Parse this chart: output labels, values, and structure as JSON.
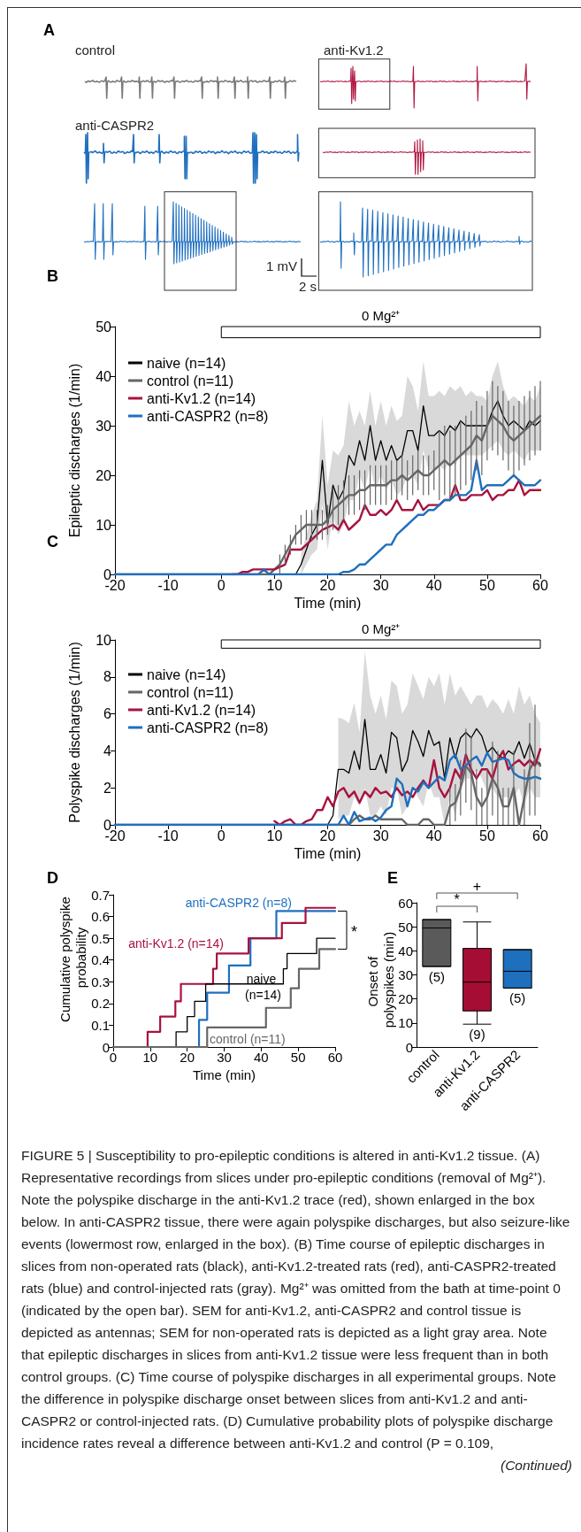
{
  "chart_data": [
    {
      "type": "other",
      "title": "A",
      "annotations": [
        "control",
        "anti-Kv1.2",
        "anti-CASPR2",
        "1 mV",
        "2 s"
      ]
    },
    {
      "type": "line",
      "title": "B",
      "xlabel": "Time (min)",
      "ylabel": "Epileptic discharges (1/min)",
      "xlim": [
        -20,
        60
      ],
      "xticks": [
        -20,
        -10,
        0,
        10,
        20,
        30,
        40,
        50,
        60
      ],
      "ylim": [
        0,
        50
      ],
      "yticks": [
        0,
        10,
        20,
        30,
        40,
        50
      ],
      "legend": "top left",
      "bands": [
        {
          "axis": "x",
          "from": 0,
          "to": 60,
          "label": "0 Mg²⁺"
        }
      ],
      "x": [
        -20,
        -19,
        -18,
        -17,
        -16,
        -15,
        -14,
        -13,
        -12,
        -11,
        -10,
        -9,
        -8,
        -7,
        -6,
        -5,
        -4,
        -3,
        -2,
        -1,
        0,
        1,
        2,
        3,
        4,
        5,
        6,
        7,
        8,
        9,
        10,
        11,
        12,
        13,
        14,
        15,
        16,
        17,
        18,
        19,
        20,
        21,
        22,
        23,
        24,
        25,
        26,
        27,
        28,
        29,
        30,
        31,
        32,
        33,
        34,
        35,
        36,
        37,
        38,
        39,
        40,
        41,
        42,
        43,
        44,
        45,
        46,
        47,
        48,
        49,
        50,
        51,
        52,
        53,
        54,
        55,
        56,
        57,
        58,
        59,
        60
      ],
      "series": [
        {
          "name": "naive (n=14)",
          "color": "#000000",
          "values": [
            0,
            0,
            0,
            0,
            0,
            0,
            0,
            0,
            0,
            0,
            0,
            0,
            0,
            0,
            0,
            0,
            0,
            0,
            0,
            0,
            0,
            0,
            0,
            0,
            0,
            0,
            0,
            0,
            0,
            0,
            0,
            0,
            0,
            0,
            0,
            2,
            5,
            8,
            10,
            23,
            10,
            18,
            15,
            17,
            24,
            22,
            27,
            23,
            30,
            23,
            27,
            23,
            26,
            23,
            24,
            29,
            29,
            25,
            34,
            28,
            28,
            29,
            28,
            30,
            29,
            31,
            30,
            30,
            30,
            30,
            30,
            33,
            35,
            32,
            30,
            31,
            30,
            29,
            31,
            30,
            31
          ],
          "lower": [
            null,
            null,
            null,
            null,
            null,
            null,
            null,
            null,
            null,
            null,
            null,
            null,
            null,
            null,
            null,
            null,
            null,
            null,
            null,
            null,
            null,
            null,
            null,
            null,
            null,
            null,
            null,
            null,
            null,
            null,
            null,
            null,
            null,
            null,
            null,
            0,
            2,
            4,
            5,
            14,
            5,
            12,
            8,
            10,
            15,
            15,
            20,
            17,
            22,
            17,
            20,
            17,
            19,
            16,
            17,
            20,
            20,
            18,
            25,
            21,
            21,
            22,
            21,
            23,
            22,
            24,
            24,
            24,
            24,
            24,
            25,
            26,
            27,
            25,
            24,
            25,
            24,
            23,
            25,
            25,
            25
          ],
          "upper": [
            null,
            null,
            null,
            null,
            null,
            null,
            null,
            null,
            null,
            null,
            null,
            null,
            null,
            null,
            null,
            null,
            null,
            null,
            null,
            null,
            null,
            null,
            null,
            null,
            null,
            null,
            null,
            null,
            null,
            null,
            null,
            null,
            null,
            null,
            null,
            4,
            8,
            12,
            15,
            32,
            18,
            25,
            24,
            26,
            35,
            30,
            33,
            30,
            37,
            30,
            35,
            30,
            34,
            31,
            32,
            40,
            38,
            33,
            43,
            36,
            36,
            37,
            36,
            38,
            37,
            38,
            36,
            37,
            36,
            36,
            35,
            40,
            43,
            38,
            35,
            36,
            35,
            34,
            36,
            35,
            38
          ]
        },
        {
          "name": "control (n=11)",
          "color": "#666666",
          "values": [
            0,
            0,
            0,
            0,
            0,
            0,
            0,
            0,
            0,
            0,
            0,
            0,
            0,
            0,
            0,
            0,
            0,
            0,
            0,
            0,
            0,
            0,
            0,
            0,
            0,
            0,
            0,
            0,
            0,
            0,
            1,
            2,
            4,
            6,
            8,
            9,
            10,
            10,
            10,
            10,
            11,
            13,
            14,
            15,
            16,
            16,
            17,
            17,
            18,
            18,
            18,
            18,
            19,
            19,
            20,
            19,
            20,
            21,
            20,
            20,
            21,
            22,
            23,
            22,
            23,
            24,
            25,
            26,
            28,
            27,
            30,
            32,
            31,
            30,
            28,
            27,
            28,
            29,
            30,
            31,
            32
          ],
          "errors": [
            null,
            null,
            null,
            null,
            null,
            null,
            null,
            null,
            null,
            null,
            null,
            null,
            null,
            null,
            null,
            null,
            null,
            null,
            null,
            null,
            null,
            null,
            null,
            null,
            null,
            null,
            null,
            null,
            null,
            null,
            null,
            2,
            2,
            2,
            2,
            3,
            3,
            3,
            3,
            3,
            3,
            4,
            4,
            4,
            4,
            4,
            4,
            4,
            4,
            4,
            4,
            4,
            4,
            4,
            4,
            4,
            4,
            4,
            4,
            4,
            4,
            7,
            7,
            7,
            7,
            7,
            7,
            7,
            7,
            7,
            7,
            7,
            7,
            7,
            7,
            7,
            7,
            7,
            7,
            7,
            7
          ]
        },
        {
          "name": "anti-Kv1.2 (n=14)",
          "color": "#a8123e",
          "values": [
            null,
            null,
            null,
            null,
            null,
            null,
            null,
            null,
            null,
            null,
            null,
            null,
            null,
            null,
            null,
            null,
            null,
            null,
            null,
            null,
            null,
            null,
            0,
            0,
            0.5,
            0.5,
            1,
            1,
            1,
            1,
            1,
            1.5,
            2,
            5,
            5,
            5,
            6,
            7,
            8,
            9,
            9.5,
            10,
            9,
            11,
            9,
            10,
            11,
            14,
            12,
            12,
            13,
            12,
            13,
            15,
            13,
            13,
            13,
            15,
            13,
            14,
            14,
            14,
            15,
            15,
            18,
            15,
            15,
            16,
            16,
            16,
            17,
            15,
            16,
            16,
            17,
            17,
            19,
            16,
            17,
            17,
            17
          ]
        },
        {
          "name": "anti-CASPR2 (n=8)",
          "color": "#1f6fbf",
          "values": [
            0,
            0,
            0,
            0,
            0,
            0,
            0,
            0,
            0,
            0,
            0,
            0,
            0,
            0,
            0,
            0,
            0,
            0,
            0,
            0,
            0,
            0,
            0,
            0,
            0,
            0,
            0,
            0,
            1,
            0,
            0,
            0,
            0,
            0,
            0,
            0,
            0,
            0,
            0,
            0,
            0,
            0,
            0,
            0.5,
            0.5,
            1,
            2,
            2,
            3,
            4,
            5,
            6,
            6,
            8,
            9,
            10,
            11,
            12,
            12,
            13,
            13,
            14,
            15,
            15,
            16,
            16,
            16,
            17,
            23,
            17,
            18,
            18,
            18,
            18,
            19,
            20,
            19,
            18,
            18,
            18,
            19
          ]
        }
      ]
    },
    {
      "type": "line",
      "title": "C",
      "xlabel": "Time (min)",
      "ylabel": "Polyspike discharges (1/min)",
      "xlim": [
        -20,
        60
      ],
      "xticks": [
        -20,
        -10,
        0,
        10,
        20,
        30,
        40,
        50,
        60
      ],
      "ylim": [
        0,
        10
      ],
      "yticks": [
        0,
        2,
        4,
        6,
        8,
        10
      ],
      "legend": "top left",
      "bands": [
        {
          "axis": "x",
          "from": 0,
          "to": 60,
          "label": "0 Mg²⁺"
        }
      ],
      "x": [
        -20,
        -19,
        -18,
        -17,
        -16,
        -15,
        -14,
        -13,
        -12,
        -11,
        -10,
        -9,
        -8,
        -7,
        -6,
        -5,
        -4,
        -3,
        -2,
        -1,
        0,
        1,
        2,
        3,
        4,
        5,
        6,
        7,
        8,
        9,
        10,
        11,
        12,
        13,
        14,
        15,
        16,
        17,
        18,
        19,
        20,
        21,
        22,
        23,
        24,
        25,
        26,
        27,
        28,
        29,
        30,
        31,
        32,
        33,
        34,
        35,
        36,
        37,
        38,
        39,
        40,
        41,
        42,
        43,
        44,
        45,
        46,
        47,
        48,
        49,
        50,
        51,
        52,
        53,
        54,
        55,
        56,
        57,
        58,
        59,
        60
      ],
      "series": [
        {
          "name": "naive (n=14)",
          "color": "#000000",
          "values": [
            0,
            0,
            0,
            0,
            0,
            0,
            0,
            0,
            0,
            0,
            0,
            0,
            0,
            0,
            0,
            0,
            0,
            0,
            0,
            0,
            0,
            0,
            0,
            0,
            0,
            0,
            0,
            0,
            0,
            0,
            0,
            0,
            0,
            0,
            0,
            0,
            0,
            0,
            0,
            0,
            0,
            0.5,
            3,
            3,
            2.8,
            4,
            3,
            5.7,
            3,
            3,
            3.8,
            2.8,
            5,
            4.7,
            2.9,
            3.5,
            5.1,
            4.5,
            3.7,
            5.1,
            4.3,
            4.5,
            2.5,
            4.7,
            3.6,
            4.7,
            5,
            4.7,
            5.2,
            4.8,
            3.9,
            4.2,
            3.8,
            3.6,
            4,
            3.8,
            4.5,
            3.6,
            4.4,
            3.5,
            3.3
          ],
          "lower": [
            null,
            null,
            null,
            null,
            null,
            null,
            null,
            null,
            null,
            null,
            null,
            null,
            null,
            null,
            null,
            null,
            null,
            null,
            null,
            null,
            null,
            null,
            null,
            null,
            null,
            null,
            null,
            null,
            null,
            null,
            null,
            null,
            null,
            null,
            null,
            null,
            null,
            null,
            null,
            null,
            null,
            null,
            0.3,
            0.5,
            0.5,
            1.5,
            1,
            2,
            0.5,
            0.5,
            1,
            0.5,
            2,
            2,
            0.5,
            1,
            2,
            1.5,
            1,
            2.3,
            1.5,
            1.5,
            0,
            1.5,
            0.5,
            2,
            2.5,
            2.5,
            3,
            2.5,
            1.8,
            2,
            1.5,
            1.5,
            1.5,
            1.5,
            2,
            1,
            2,
            1.5,
            1.5
          ],
          "upper": [
            null,
            null,
            null,
            null,
            null,
            null,
            null,
            null,
            null,
            null,
            null,
            null,
            null,
            null,
            null,
            null,
            null,
            null,
            null,
            null,
            null,
            null,
            null,
            null,
            null,
            null,
            null,
            null,
            null,
            null,
            null,
            null,
            null,
            null,
            null,
            null,
            null,
            null,
            null,
            null,
            null,
            null,
            5.8,
            5.7,
            5.5,
            6.6,
            5,
            9.4,
            7,
            6,
            7,
            5.7,
            7.8,
            7.5,
            6,
            6.5,
            8.2,
            7.5,
            6.8,
            8,
            7.5,
            8.2,
            6.5,
            8.2,
            7,
            7.5,
            7,
            6.5,
            7,
            7,
            6.3,
            6.8,
            6.5,
            6,
            6.8,
            6,
            7.5,
            6.5,
            7,
            6,
            5.5
          ]
        },
        {
          "name": "control (n=11)",
          "color": "#666666",
          "values": [
            0,
            0,
            0,
            0,
            0,
            0,
            0,
            0,
            0,
            0,
            0,
            0,
            0,
            0,
            0,
            0,
            0,
            0,
            0,
            0,
            0,
            0,
            0,
            0,
            0,
            0,
            0,
            0,
            0,
            0,
            0,
            0,
            0,
            0,
            0,
            0,
            0,
            0,
            0,
            0,
            0,
            0,
            0,
            0,
            0,
            0.3,
            0.5,
            0.3,
            0.3,
            0.5,
            0.3,
            0.3,
            0.3,
            0.3,
            0.3,
            0,
            0,
            0,
            0.3,
            0.3,
            0,
            0,
            0,
            1,
            1.2,
            2,
            3.2,
            2.8,
            1.5,
            1,
            1.5,
            2.5,
            2,
            1,
            1,
            2,
            0,
            1.5,
            3,
            3.5,
            3.2
          ],
          "errors": [
            null,
            null,
            null,
            null,
            null,
            null,
            null,
            null,
            null,
            null,
            null,
            null,
            null,
            null,
            null,
            null,
            null,
            null,
            null,
            null,
            null,
            null,
            null,
            null,
            null,
            null,
            null,
            null,
            null,
            null,
            null,
            null,
            null,
            null,
            null,
            null,
            null,
            null,
            null,
            null,
            null,
            null,
            null,
            null,
            null,
            null,
            null,
            null,
            null,
            null,
            null,
            null,
            null,
            null,
            null,
            null,
            null,
            null,
            null,
            null,
            null,
            null,
            null,
            1,
            1,
            1.5,
            2,
            2,
            1.5,
            1,
            1.5,
            2,
            2,
            1,
            1,
            2,
            null,
            1.5,
            2.5,
            3,
            null
          ]
        },
        {
          "name": "anti-Kv1.2 (n=14)",
          "color": "#a8123e",
          "values": [
            null,
            null,
            null,
            null,
            null,
            null,
            null,
            null,
            null,
            null,
            null,
            null,
            null,
            null,
            null,
            null,
            null,
            null,
            null,
            null,
            null,
            null,
            null,
            null,
            null,
            null,
            null,
            null,
            null,
            null,
            0.2,
            0,
            0.2,
            0.3,
            0,
            0,
            0.2,
            0.3,
            0.8,
            0.8,
            1.5,
            1,
            1.8,
            2,
            1.5,
            1.8,
            1.2,
            1.8,
            1.5,
            2,
            1.7,
            1.8,
            1.5,
            2,
            1.6,
            1.8,
            1.5,
            2,
            2.4,
            2,
            3.5,
            2,
            1.5,
            2,
            3,
            2.5,
            3.8,
            3,
            2.5,
            3,
            3,
            2.5,
            3.5,
            4,
            3,
            3.3,
            3.5,
            3.2,
            3.5,
            3.2,
            4.1
          ]
        },
        {
          "name": "anti-CASPR2 (n=8)",
          "color": "#1f6fbf",
          "values": [
            0,
            0,
            0,
            0,
            0,
            0,
            0,
            0,
            0,
            0,
            0,
            0,
            0,
            0,
            0,
            0,
            0,
            0,
            0,
            0,
            0,
            0,
            0,
            0,
            0,
            0,
            0,
            0,
            0,
            0,
            0,
            0,
            0,
            0,
            0,
            0,
            0,
            0,
            0,
            0,
            0,
            0,
            0,
            0.5,
            0,
            0.7,
            0.2,
            0.3,
            0.4,
            0.2,
            0.4,
            0.8,
            1,
            2.5,
            2.2,
            1,
            2,
            1.8,
            2.3,
            2,
            2.3,
            2.6,
            2.4,
            3.5,
            3.8,
            3,
            3.2,
            3.5,
            3.7,
            3.2,
            3.9,
            3.4,
            3.5,
            3.6,
            3.5,
            2.8,
            2.6,
            2.5,
            2.5,
            2.6,
            2.5
          ]
        }
      ]
    },
    {
      "type": "step",
      "title": "D",
      "xlabel": "Time (min)",
      "ylabel": "Cumulative polyspike probability",
      "xlim": [
        0,
        60
      ],
      "xticks": [
        0,
        10,
        20,
        30,
        40,
        50,
        60
      ],
      "ylim": [
        0,
        0.7
      ],
      "yticks": [
        0,
        0.1,
        0.2,
        0.3,
        0.4,
        0.5,
        0.6,
        0.7
      ],
      "annotations": [
        "*"
      ],
      "series": [
        {
          "name": "anti-CASPR2 (n=8)",
          "color": "#1f6fbf",
          "x": [
            0,
            23.2,
            25.4,
            31.3,
            37.1,
            44.1,
            60
          ],
          "values": [
            0,
            0.125,
            0.25,
            0.375,
            0.5,
            0.625,
            0.625
          ]
        },
        {
          "name": "anti-Kv1.2 (n=14)",
          "color": "#a8123e",
          "x": [
            0,
            9.3,
            12.7,
            16.8,
            18.3,
            27,
            28,
            36.6,
            45.6,
            52,
            60
          ],
          "values": [
            0,
            0.07,
            0.14,
            0.21,
            0.29,
            0.36,
            0.43,
            0.5,
            0.57,
            0.64,
            0.64
          ]
        },
        {
          "name": "naive (n=14)",
          "color": "#000000",
          "x": [
            0,
            17,
            20,
            22,
            25,
            46,
            47,
            55,
            60
          ],
          "values": [
            0,
            0.07,
            0.14,
            0.21,
            0.29,
            0.36,
            0.43,
            0.5,
            0.5
          ]
        },
        {
          "name": "control (n=11)",
          "color": "#666666",
          "x": [
            0,
            25.4,
            41.3,
            48,
            50.2,
            55.7,
            60
          ],
          "values": [
            0,
            0.09,
            0.18,
            0.27,
            0.36,
            0.45,
            0.45
          ]
        }
      ]
    },
    {
      "type": "box",
      "title": "E",
      "ylabel": "Onset of polyspikes (min)",
      "categories": [
        "control",
        "anti-Kv1.2",
        "anti-CASPR2"
      ],
      "colors": [
        "#5a5a5a",
        "#a50d35",
        "#1e6fbd"
      ],
      "ylim": [
        0,
        60
      ],
      "yticks": [
        0,
        10,
        20,
        30,
        40,
        50,
        60
      ],
      "annotations": [
        "(5)",
        "(9)",
        "(5)",
        "*",
        "+"
      ],
      "boxes": [
        {
          "low": 33.5,
          "q1": 33.5,
          "median": 49.5,
          "q3": 53,
          "high": 53
        },
        {
          "low": 9.5,
          "q1": 15,
          "median": 27,
          "q3": 41,
          "high": 52
        },
        {
          "low": 24.5,
          "q1": 24.5,
          "median": 31.5,
          "q3": 40.5,
          "high": 40.5
        }
      ]
    },
    {
      "type": "other",
      "annotations": [
        "FIGURE 5 | Susceptibility to pro-epileptic conditions is altered in anti-Kv1.2 tissue. (A) Representative recordings from slices under pro-epileptic conditions (removal of Mg²⁺). Note the polyspike discharge in the anti-Kv1.2 trace (red), shown enlarged in the box below. In anti-CASPR2 tissue, there were again polyspike discharges, but also seizure-like events (lowermost row, enlarged in the box). (B) Time course of epileptic discharges in slices from non-operated rats (black), anti-Kv1.2-treated rats (red), anti-CASPR2-treated rats (blue) and control-injected rats (gray). Mg²⁺ was omitted from the bath at time-point 0 (indicated by the open bar). SEM for anti-Kv1.2, anti-CASPR2 and control tissue is depicted as antennas; SEM for non-operated rats is depicted as a light gray area. Note that epileptic discharges in slices from anti-Kv1.2 tissue were less frequent than in both control groups. (C) Time course of polyspike discharges in all experimental groups. Note the difference in polyspike discharge onset between slices from anti-Kv1.2 and anti-CASPR2 or control-injected rats. (D) Cumulative probability plots of polyspike discharge incidence rates reveal a difference between anti-Kv1.2 and control (P = 0.109,",
        "(Continued)"
      ]
    }
  ]
}
